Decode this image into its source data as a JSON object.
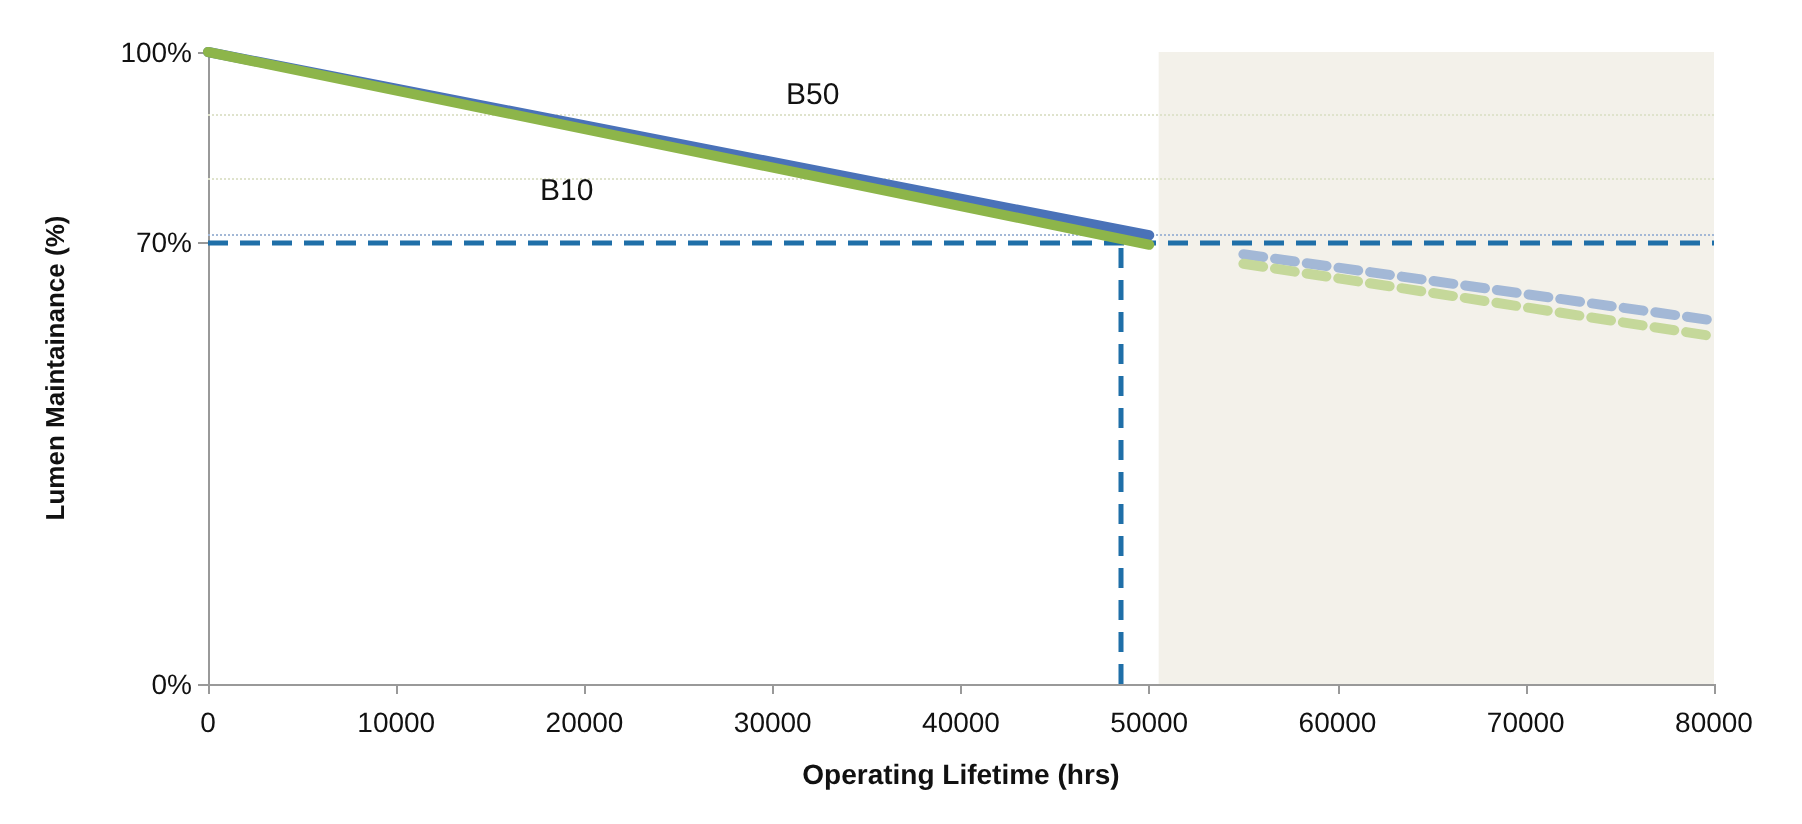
{
  "chart_data": {
    "type": "line",
    "xlabel": "Operating Lifetime (hrs)",
    "ylabel": "Lumen Maintainance (%)",
    "xlim": [
      0,
      80000
    ],
    "xticks": [
      0,
      10000,
      20000,
      30000,
      40000,
      50000,
      60000,
      70000,
      80000
    ],
    "ylim": [
      0,
      100
    ],
    "yticks": [
      {
        "value": 0,
        "label": "0%"
      },
      {
        "value": 70,
        "label": "70%"
      },
      {
        "value": 100,
        "label": "100%"
      }
    ],
    "marker": "none",
    "series": [
      {
        "color": "#4a72b8",
        "x": [
          0,
          50000
        ],
        "values": [
          100,
          71
        ],
        "line_style": "solid"
      },
      {
        "color": "#8db54a",
        "x": [
          0,
          50000
        ],
        "values": [
          100,
          69.5
        ],
        "line_style": "solid"
      },
      {
        "color": "#a3b8d6",
        "x": [
          55000,
          80000
        ],
        "values": [
          68,
          57.5
        ],
        "line_style": "dashed"
      },
      {
        "color": "#c5d89a",
        "x": [
          55000,
          80000
        ],
        "values": [
          66.5,
          55
        ],
        "line_style": "dashed"
      }
    ],
    "ref_lines": [
      {
        "axis": "y",
        "value": 90,
        "color": "#dfe3cc",
        "line_style": "dotted"
      },
      {
        "axis": "y",
        "value": 80,
        "color": "#dfe3cc",
        "line_style": "dotted"
      },
      {
        "axis": "y",
        "value": 71,
        "color": "#a3b8d6",
        "line_style": "dotted"
      },
      {
        "axis": "y",
        "value": 70,
        "color": "#1f6fa8",
        "line_style": "dashed"
      },
      {
        "axis": "x",
        "value": 48500,
        "color": "#1f6fa8",
        "line_style": "dashed"
      }
    ],
    "bands": [
      {
        "axis": "x",
        "from": 50500,
        "to": 80000,
        "color": "#f3f1ea"
      }
    ],
    "annotations": [
      "B50",
      "B10"
    ]
  }
}
